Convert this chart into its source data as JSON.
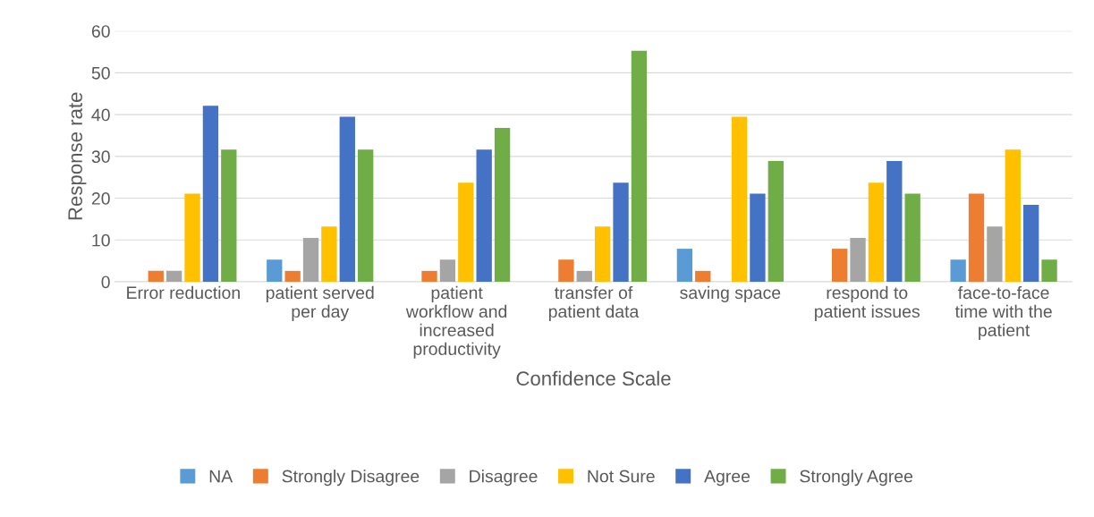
{
  "chart_data": {
    "type": "bar",
    "xlabel": "Confidence Scale",
    "ylabel": "Response rate",
    "categories": [
      "Error reduction",
      "patient served\nper day",
      "patient\nworkflow and\nincreased\nproductivity",
      "transfer of\npatient data",
      "saving space",
      "respond to\npatient issues",
      "face-to-face\ntime with the\npatient"
    ],
    "series": [
      {
        "name": "NA",
        "color": "#5b9bd5",
        "values": [
          0,
          5.3,
          0,
          0,
          7.9,
          0,
          5.3
        ]
      },
      {
        "name": "Strongly Disagree",
        "color": "#ed7d31",
        "values": [
          2.6,
          2.6,
          2.6,
          5.3,
          2.6,
          7.9,
          21.1
        ]
      },
      {
        "name": "Disagree",
        "color": "#a5a5a5",
        "values": [
          2.6,
          10.5,
          5.3,
          2.6,
          0,
          10.5,
          13.2
        ]
      },
      {
        "name": "Not Sure",
        "color": "#ffc000",
        "values": [
          21.1,
          13.2,
          23.7,
          13.2,
          39.5,
          23.7,
          31.6
        ]
      },
      {
        "name": "Agree",
        "color": "#4472c4",
        "values": [
          42.1,
          39.5,
          31.6,
          23.7,
          21.1,
          28.9,
          18.4
        ]
      },
      {
        "name": "Strongly Agree",
        "color": "#70ad47",
        "values": [
          31.6,
          31.6,
          36.8,
          55.3,
          28.9,
          21.1,
          5.3
        ]
      }
    ],
    "ylim": [
      0,
      60
    ],
    "yticks": [
      0,
      10,
      20,
      30,
      40,
      50,
      60
    ],
    "grid": "y",
    "legend": "bottom"
  }
}
